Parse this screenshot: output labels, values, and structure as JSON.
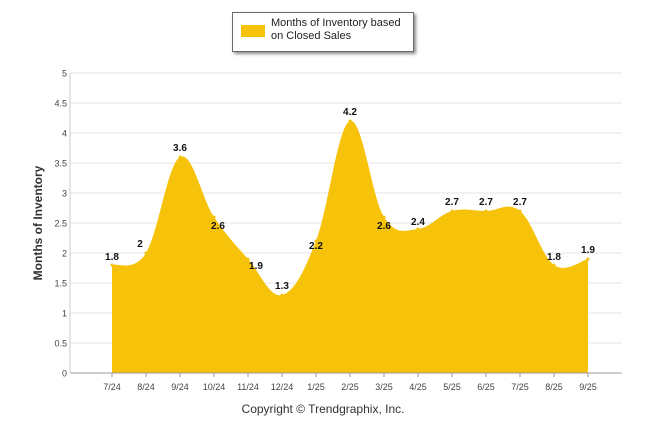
{
  "chart_data": {
    "type": "area",
    "categories": [
      "7/24",
      "8/24",
      "9/24",
      "10/24",
      "11/24",
      "12/24",
      "1/25",
      "2/25",
      "3/25",
      "4/25",
      "5/25",
      "6/25",
      "7/25",
      "8/25",
      "9/25"
    ],
    "series": [
      {
        "name": "Months of Inventory based on Closed Sales",
        "values": [
          1.8,
          2,
          3.6,
          2.6,
          1.9,
          1.3,
          2.2,
          4.2,
          2.6,
          2.4,
          2.7,
          2.7,
          2.7,
          1.8,
          1.9
        ],
        "color": "#f7c20a"
      }
    ],
    "data_labels": [
      "1.8",
      "2",
      "3.6",
      "2.6",
      "1.9",
      "1.3",
      "2.2",
      "4.2",
      "2.6",
      "2.4",
      "2.7",
      "2.7",
      "2.7",
      "1.8",
      "1.9"
    ],
    "ylabel": "Months of Inventory",
    "xlabel": "",
    "ylim": [
      0,
      5
    ],
    "yticks": [
      "0",
      "0.5",
      "1",
      "1.5",
      "2",
      "2.5",
      "3",
      "3.5",
      "4",
      "4.5",
      "5"
    ],
    "grid": true,
    "legend_position": "top-center"
  },
  "legend": {
    "label": "Months of Inventory based on Closed Sales",
    "color": "#f7c20a"
  },
  "footer": {
    "copyright": "Copyright © Trendgraphix, Inc."
  }
}
